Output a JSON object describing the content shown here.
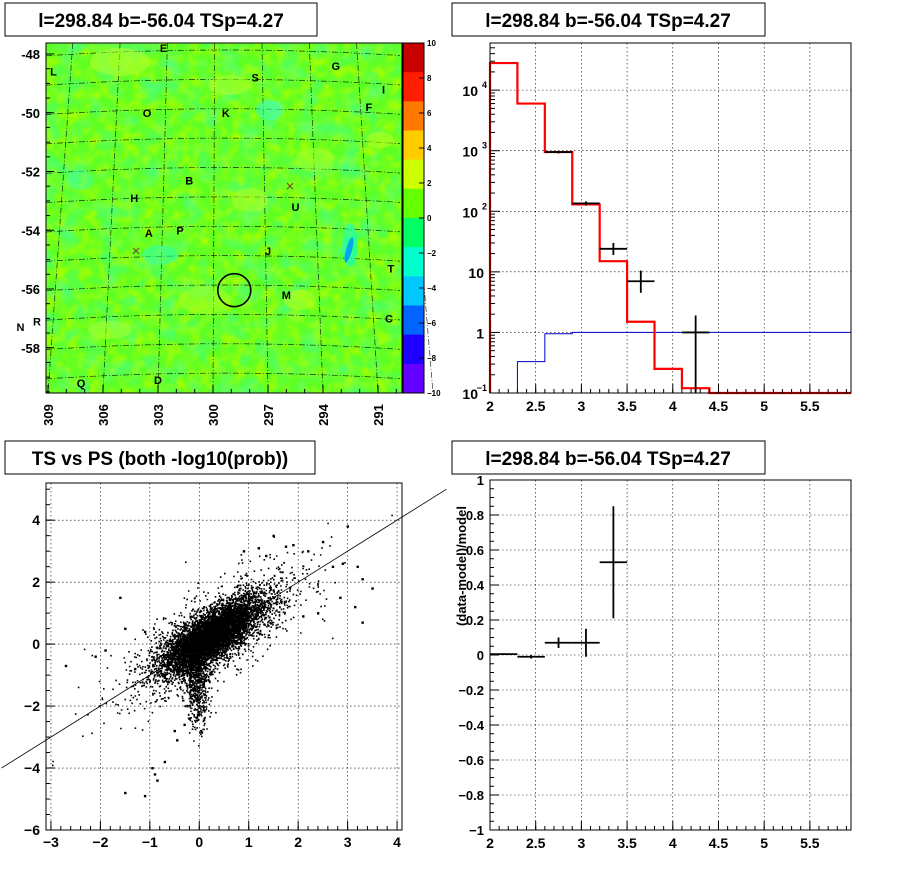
{
  "chart_data": [
    {
      "type": "heatmap",
      "title": "l=298.84 b=-56.04 TSp=4.27",
      "x_ticks": [
        "309",
        "306",
        "303",
        "300",
        "297",
        "294",
        "291"
      ],
      "x_tick_values": [
        309,
        306,
        303,
        300,
        297,
        294,
        291
      ],
      "y_ticks": [
        "-48",
        "-50",
        "-52",
        "-54",
        "-56",
        "-58"
      ],
      "y_tick_values": [
        -48,
        -50,
        -52,
        -54,
        -56,
        -58
      ],
      "colorbar_ticks": [
        "10",
        "8",
        "6",
        "4",
        "2",
        "0",
        "−2",
        "−4",
        "−6",
        "−8",
        "−10"
      ],
      "colorbar_values": [
        10,
        8,
        6,
        4,
        2,
        0,
        -2,
        -4,
        -6,
        -8,
        -10
      ],
      "colorbar_colors": [
        "#c80000",
        "#ff1e00",
        "#ff7800",
        "#ffcc00",
        "#ccff00",
        "#64ff00",
        "#00ff64",
        "#00ffcc",
        "#00c8ff",
        "#0064ff",
        "#1e00ff",
        "#6400ff"
      ],
      "source_labels": [
        {
          "label": "E",
          "l": 302.7,
          "b": -47.8
        },
        {
          "label": "L",
          "l": 308.7,
          "b": -48.6
        },
        {
          "label": "S",
          "l": 297.7,
          "b": -48.8
        },
        {
          "label": "G",
          "l": 293.3,
          "b": -48.4
        },
        {
          "label": "I",
          "l": 290.7,
          "b": -49.2
        },
        {
          "label": "F",
          "l": 291.5,
          "b": -49.8
        },
        {
          "label": "O",
          "l": 303.6,
          "b": -50.0
        },
        {
          "label": "K",
          "l": 299.3,
          "b": -50.0
        },
        {
          "label": "B",
          "l": 301.3,
          "b": -52.3
        },
        {
          "label": "H",
          "l": 304.3,
          "b": -52.9
        },
        {
          "label": "U",
          "l": 295.5,
          "b": -53.2
        },
        {
          "label": "A",
          "l": 303.5,
          "b": -54.1
        },
        {
          "label": "P",
          "l": 301.8,
          "b": -54.0
        },
        {
          "label": "J",
          "l": 297.0,
          "b": -54.7
        },
        {
          "label": "T",
          "l": 290.3,
          "b": -55.3
        },
        {
          "label": "M",
          "l": 296.0,
          "b": -56.2
        },
        {
          "label": "C",
          "l": 290.4,
          "b": -57.0
        },
        {
          "label": "N",
          "l": 310.5,
          "b": -57.3
        },
        {
          "label": "R",
          "l": 309.6,
          "b": -57.1
        },
        {
          "label": "D",
          "l": 303.0,
          "b": -59.1
        },
        {
          "label": "Q",
          "l": 307.2,
          "b": -59.2
        }
      ],
      "cross_markers": [
        {
          "l": 295.8,
          "b": -52.5
        },
        {
          "l": 304.2,
          "b": -54.7
        }
      ],
      "circle_marker": {
        "l": 298.84,
        "b": -56.04,
        "radius_deg": 0.55
      }
    },
    {
      "type": "line",
      "title": "l=298.84 b=-56.04 TSp=4.27",
      "y_scale": "log",
      "xlim": [
        2,
        5.95
      ],
      "ylim": [
        0.1,
        60000
      ],
      "x_ticks": [
        "2",
        "2.5",
        "3",
        "3.5",
        "4",
        "4.5",
        "5",
        "5.5"
      ],
      "x_tick_values": [
        2,
        2.5,
        3,
        3.5,
        4,
        4.5,
        5,
        5.5
      ],
      "y_ticks": [
        {
          "mantissa": "10",
          "exp": "−1",
          "value": 0.1
        },
        {
          "mantissa": "1",
          "exp": "",
          "value": 1
        },
        {
          "mantissa": "10",
          "exp": "",
          "value": 10
        },
        {
          "mantissa": "10",
          "exp": "2",
          "value": 100
        },
        {
          "mantissa": "10",
          "exp": "3",
          "value": 1000
        },
        {
          "mantissa": "10",
          "exp": "4",
          "value": 10000
        }
      ],
      "bin_edges": [
        2,
        2.3,
        2.6,
        2.9,
        3.2,
        3.5,
        3.8,
        4.1,
        4.4,
        4.7,
        5.0,
        5.3,
        5.6,
        5.95
      ],
      "model_red": [
        28000,
        6000,
        950,
        130,
        15,
        1.5,
        0.25,
        0.12,
        0.09,
        0.09,
        0.09,
        0.09,
        0.09
      ],
      "model_blue": [
        0.08,
        0.33,
        0.95,
        1.0,
        1.0,
        1.0,
        1.0,
        1.0,
        1.0,
        1.0,
        1.0,
        1.0,
        1.0
      ],
      "color_red": "#ff0000",
      "color_blue": "#0000cc",
      "data_points": [
        {
          "x": 2.75,
          "xerr": 0.15,
          "y": 950,
          "ylo": 900,
          "yhi": 1000
        },
        {
          "x": 3.05,
          "xerr": 0.15,
          "y": 135,
          "ylo": 124,
          "yhi": 146
        },
        {
          "x": 3.35,
          "xerr": 0.15,
          "y": 24,
          "ylo": 19,
          "yhi": 30
        },
        {
          "x": 3.65,
          "xerr": 0.15,
          "y": 7,
          "ylo": 4.5,
          "yhi": 10.5
        },
        {
          "x": 4.25,
          "xerr": 0.15,
          "y": 1.0,
          "ylo": 0.09,
          "yhi": 1.9
        }
      ]
    },
    {
      "type": "scatter",
      "title": "TS vs PS (both -log10(prob))",
      "xlim": [
        -3.1,
        4.1
      ],
      "ylim": [
        -6,
        5.2
      ],
      "x_ticks": [
        "−3",
        "−2",
        "−1",
        "0",
        "1",
        "2",
        "3",
        "4"
      ],
      "x_tick_values": [
        -3,
        -2,
        -1,
        0,
        1,
        2,
        3,
        4
      ],
      "y_ticks": [
        "−6",
        "−4",
        "−2",
        "0",
        "2",
        "4"
      ],
      "y_tick_values": [
        -6,
        -4,
        -2,
        0,
        2,
        4
      ],
      "reference_line": {
        "x1": -4,
        "y1": -4,
        "x2": 5,
        "y2": 5
      },
      "cluster": {
        "center_x": 0.25,
        "center_y": 0.3,
        "n_points": 7000,
        "sx": 0.5,
        "sy": 0.6,
        "correlation": 0.75
      },
      "outliers": [
        [
          -2.7,
          -0.7
        ],
        [
          -2.1,
          -0.4
        ],
        [
          -1.9,
          -0.2
        ],
        [
          -1.5,
          0.5
        ],
        [
          -1.1,
          0.4
        ],
        [
          -1.3,
          -0.8
        ],
        [
          -1.5,
          -4.8
        ],
        [
          -1.1,
          -4.9
        ],
        [
          -0.9,
          -4.2
        ],
        [
          -0.85,
          -4.4
        ],
        [
          -0.95,
          -4.0
        ],
        [
          -0.7,
          -3.8
        ],
        [
          -0.5,
          -2.8
        ],
        [
          -0.45,
          -3.1
        ],
        [
          2.7,
          2.5
        ],
        [
          3.0,
          3.8
        ],
        [
          3.3,
          2.1
        ],
        [
          3.5,
          1.8
        ],
        [
          2.85,
          1.5
        ],
        [
          3.15,
          1.2
        ],
        [
          2.5,
          3.3
        ],
        [
          2.2,
          3.0
        ],
        [
          1.9,
          3.2
        ],
        [
          1.5,
          3.5
        ],
        [
          1.2,
          3.1
        ],
        [
          0.9,
          3.0
        ],
        [
          2.4,
          1.0
        ],
        [
          2.1,
          0.9
        ],
        [
          -0.3,
          -2.6
        ],
        [
          3.3,
          0.7
        ],
        [
          3.2,
          2.5
        ],
        [
          1.75,
          3.15
        ],
        [
          2.9,
          2.6
        ],
        [
          1.35,
          2.85
        ],
        [
          -1.6,
          1.5
        ],
        [
          -0.2,
          -2.4
        ]
      ]
    },
    {
      "type": "line",
      "title": "l=298.84 b=-56.04 TSp=4.27",
      "ylabel": "(data-model)/model",
      "xlim": [
        2,
        5.95
      ],
      "ylim": [
        -1,
        1
      ],
      "x_ticks": [
        "2",
        "2.5",
        "3",
        "3.5",
        "4",
        "4.5",
        "5",
        "5.5"
      ],
      "x_tick_values": [
        2,
        2.5,
        3,
        3.5,
        4,
        4.5,
        5,
        5.5
      ],
      "y_ticks": [
        "1",
        "0.8",
        "0.6",
        "0.4",
        "0.2",
        "0",
        "−0.2",
        "−0.4",
        "−0.6",
        "−0.8",
        "−1"
      ],
      "y_tick_values": [
        1,
        0.8,
        0.6,
        0.4,
        0.2,
        0,
        -0.2,
        -0.4,
        -0.6,
        -0.8,
        -1
      ],
      "data_points": [
        {
          "x": 2.15,
          "xerr": 0.15,
          "y": 0.005,
          "ylo": 0.0,
          "yhi": 0.01
        },
        {
          "x": 2.45,
          "xerr": 0.15,
          "y": -0.01,
          "ylo": -0.02,
          "yhi": 0.0
        },
        {
          "x": 2.75,
          "xerr": 0.15,
          "y": 0.07,
          "ylo": 0.04,
          "yhi": 0.1
        },
        {
          "x": 3.05,
          "xerr": 0.15,
          "y": 0.07,
          "ylo": -0.01,
          "yhi": 0.15
        },
        {
          "x": 3.35,
          "xerr": 0.15,
          "y": 0.53,
          "ylo": 0.21,
          "yhi": 0.85
        }
      ]
    }
  ]
}
